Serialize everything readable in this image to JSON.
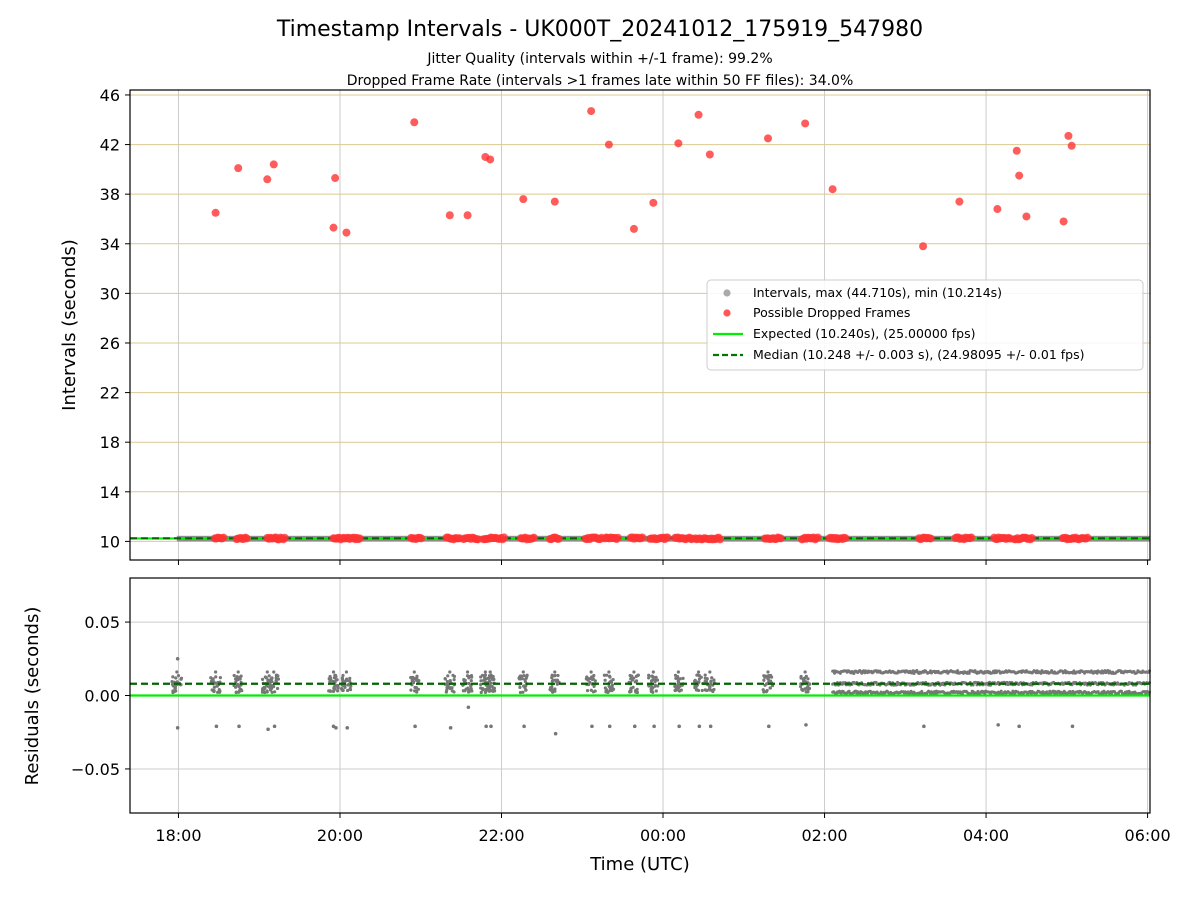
{
  "figure": {
    "title": "Timestamp Intervals - UK000T_20241012_175919_547980",
    "subtitle_1": "Jitter Quality (intervals within +/-1 frame): 99.2%",
    "subtitle_2": "Dropped Frame Rate (intervals >1 frames late within 50 FF files): 34.0%"
  },
  "chart_data": [
    {
      "type": "scatter",
      "panel": "top",
      "ylabel": "Intervals (seconds)",
      "xlabel": "",
      "ylim": [
        8.5,
        46.4
      ],
      "xlim_hours": [
        17.4,
        30.03
      ],
      "yticks": [
        10,
        14,
        18,
        22,
        26,
        30,
        34,
        38,
        42,
        46
      ],
      "ytick_labels": [
        "10",
        "14",
        "18",
        "22",
        "26",
        "30",
        "34",
        "38",
        "42",
        "46"
      ],
      "grid": "on",
      "hgrid_color": "#dcc991",
      "vgrid_color": "#cccccc",
      "legend_position": "center-right",
      "legend": [
        {
          "label": "Intervals, max (44.710s), min (10.214s)",
          "marker": "dot",
          "color": "#aaaaaa"
        },
        {
          "label": "Possible Dropped Frames",
          "marker": "dot",
          "color": "#ff5555"
        },
        {
          "label": "Expected (10.240s), (25.00000 fps)",
          "marker": "line",
          "color": "#00ee00"
        },
        {
          "label": "Median (10.248 +/- 0.003 s), (24.98095 +/- 0.01 fps)",
          "marker": "dashed",
          "color": "#007700"
        }
      ],
      "series": [
        {
          "name": "Intervals, max (44.710s), min (10.214s)",
          "color": "#7a7a7a",
          "band": {
            "x_start": 17.98,
            "x_end": 30.03,
            "y_min": 10.214,
            "y_max": 10.27
          }
        },
        {
          "name": "Possible Dropped Frames",
          "color": "#ff3333",
          "points": [
            [
              18.46,
              36.5
            ],
            [
              18.74,
              40.1
            ],
            [
              19.1,
              39.2
            ],
            [
              19.18,
              40.4
            ],
            [
              19.92,
              35.3
            ],
            [
              19.94,
              39.3
            ],
            [
              20.08,
              34.9
            ],
            [
              20.92,
              43.8
            ],
            [
              21.36,
              36.3
            ],
            [
              21.58,
              36.3
            ],
            [
              21.8,
              41.0
            ],
            [
              21.86,
              40.8
            ],
            [
              22.27,
              37.6
            ],
            [
              22.66,
              37.4
            ],
            [
              23.11,
              44.7
            ],
            [
              23.33,
              42.0
            ],
            [
              23.64,
              35.2
            ],
            [
              23.88,
              37.3
            ],
            [
              24.19,
              42.1
            ],
            [
              24.44,
              44.4
            ],
            [
              24.58,
              41.2
            ],
            [
              25.3,
              42.5
            ],
            [
              25.76,
              43.7
            ],
            [
              26.1,
              38.4
            ],
            [
              27.22,
              33.8
            ],
            [
              27.67,
              37.4
            ],
            [
              28.14,
              36.8
            ],
            [
              28.38,
              41.5
            ],
            [
              28.41,
              39.5
            ],
            [
              28.5,
              36.2
            ],
            [
              28.96,
              35.8
            ],
            [
              29.02,
              42.7
            ],
            [
              29.06,
              41.9
            ]
          ],
          "low_clusters": [
            [
              18.45,
              18.56
            ],
            [
              18.72,
              18.86
            ],
            [
              19.1,
              19.33
            ],
            [
              19.92,
              20.25
            ],
            [
              20.88,
              21.02
            ],
            [
              21.32,
              21.5
            ],
            [
              21.53,
              21.72
            ],
            [
              21.78,
              22.05
            ],
            [
              22.24,
              22.41
            ],
            [
              22.6,
              22.71
            ],
            [
              23.04,
              23.24
            ],
            [
              23.28,
              23.45
            ],
            [
              23.6,
              23.76
            ],
            [
              23.84,
              24.07
            ],
            [
              24.15,
              24.38
            ],
            [
              24.4,
              24.72
            ],
            [
              25.26,
              25.47
            ],
            [
              25.72,
              25.93
            ],
            [
              26.06,
              26.26
            ],
            [
              27.17,
              27.33
            ],
            [
              27.62,
              27.83
            ],
            [
              28.1,
              28.3
            ],
            [
              28.35,
              28.58
            ],
            [
              28.95,
              29.26
            ]
          ]
        },
        {
          "name": "Expected (10.240s), (25.00000 fps)",
          "color": "#00ee00",
          "y": 10.24
        },
        {
          "name": "Median (10.248 +/- 0.003 s), (24.98095 +/- 0.01 fps)",
          "color": "#006600",
          "y": 10.248
        }
      ]
    },
    {
      "type": "scatter",
      "panel": "bottom",
      "ylabel": "Residuals (seconds)",
      "xlabel": "Time (UTC)",
      "ylim": [
        -0.08,
        0.08
      ],
      "xlim_hours": [
        17.4,
        30.03
      ],
      "yticks": [
        -0.05,
        0.0,
        0.05
      ],
      "ytick_labels": [
        "−0.05",
        "0.00",
        "0.05"
      ],
      "xticks": [
        18,
        20,
        22,
        24,
        26,
        28,
        30
      ],
      "xtick_labels": [
        "18:00",
        "20:00",
        "22:00",
        "00:00",
        "02:00",
        "04:00",
        "06:00"
      ],
      "grid": "on",
      "series": [
        {
          "name": "Residuals",
          "color": "#777777",
          "clusters": [
            17.98,
            18.46,
            18.74,
            19.1,
            19.18,
            19.92,
            20.08,
            20.92,
            21.36,
            21.58,
            21.8,
            21.86,
            22.27,
            22.66,
            23.11,
            23.33,
            23.64,
            23.88,
            24.19,
            24.44,
            24.58,
            25.3,
            25.76
          ],
          "dense_region": {
            "x_start": 26.1,
            "x_end": 30.03,
            "levels": [
              0.002,
              0.008,
              0.016
            ]
          },
          "outliers": [
            [
              17.99,
              0.025
            ],
            [
              17.99,
              -0.022
            ],
            [
              18.47,
              -0.021
            ],
            [
              18.75,
              -0.021
            ],
            [
              19.11,
              -0.023
            ],
            [
              19.19,
              -0.021
            ],
            [
              19.92,
              -0.021
            ],
            [
              19.95,
              -0.022
            ],
            [
              20.09,
              -0.022
            ],
            [
              20.93,
              -0.021
            ],
            [
              21.37,
              -0.022
            ],
            [
              21.59,
              -0.008
            ],
            [
              21.81,
              -0.021
            ],
            [
              21.87,
              -0.021
            ],
            [
              22.28,
              -0.021
            ],
            [
              22.67,
              -0.026
            ],
            [
              23.12,
              -0.021
            ],
            [
              23.34,
              -0.021
            ],
            [
              23.65,
              -0.021
            ],
            [
              23.89,
              -0.021
            ],
            [
              24.2,
              -0.021
            ],
            [
              24.45,
              -0.021
            ],
            [
              24.59,
              -0.021
            ],
            [
              25.31,
              -0.021
            ],
            [
              25.77,
              -0.02
            ],
            [
              27.23,
              -0.021
            ],
            [
              28.15,
              -0.02
            ],
            [
              28.41,
              -0.021
            ],
            [
              29.07,
              -0.021
            ]
          ]
        },
        {
          "name": "Expected",
          "color": "#00ee00",
          "y": 0.0
        },
        {
          "name": "Median",
          "color": "#006600",
          "y": 0.008
        }
      ]
    }
  ]
}
